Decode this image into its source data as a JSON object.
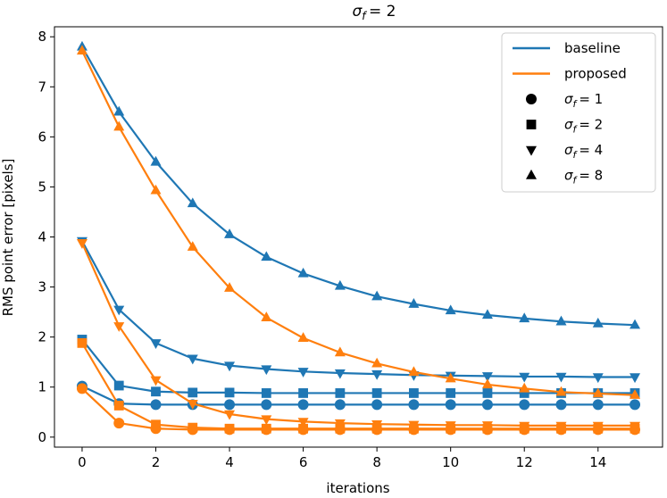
{
  "chart_data": {
    "type": "line",
    "title": "σ_f = 2",
    "xlabel": "iterations",
    "ylabel": "RMS point error [pixels]",
    "xlim": [
      -0.75,
      15.75
    ],
    "ylim": [
      -0.2,
      8.2
    ],
    "xticks": [
      0,
      2,
      4,
      6,
      8,
      10,
      12,
      14
    ],
    "yticks": [
      0,
      1,
      2,
      3,
      4,
      5,
      6,
      7,
      8
    ],
    "grid": false,
    "legend_position": "top-right",
    "colors": {
      "baseline": "#1f77b4",
      "proposed": "#ff7f0e"
    },
    "legend": {
      "methods": [
        {
          "key": "baseline",
          "label": "baseline"
        },
        {
          "key": "proposed",
          "label": "proposed"
        }
      ],
      "markers": [
        {
          "marker": "circle",
          "label": "σ_f = 1"
        },
        {
          "marker": "square",
          "label": "σ_f = 2"
        },
        {
          "marker": "triangle-down",
          "label": "σ_f = 4"
        },
        {
          "marker": "triangle-up",
          "label": "σ_f = 8"
        }
      ]
    },
    "x": [
      0,
      1,
      2,
      3,
      4,
      5,
      6,
      7,
      8,
      9,
      10,
      11,
      12,
      13,
      14,
      15
    ],
    "series": [
      {
        "method": "baseline",
        "sigma_f": 1,
        "marker": "circle",
        "values": [
          1.02,
          0.67,
          0.65,
          0.65,
          0.65,
          0.65,
          0.65,
          0.65,
          0.65,
          0.65,
          0.65,
          0.65,
          0.65,
          0.65,
          0.65,
          0.65
        ]
      },
      {
        "method": "baseline",
        "sigma_f": 2,
        "marker": "square",
        "values": [
          1.95,
          1.03,
          0.91,
          0.89,
          0.89,
          0.88,
          0.88,
          0.88,
          0.88,
          0.88,
          0.88,
          0.88,
          0.88,
          0.88,
          0.88,
          0.88
        ]
      },
      {
        "method": "baseline",
        "sigma_f": 4,
        "marker": "triangle-down",
        "values": [
          3.92,
          2.55,
          1.88,
          1.57,
          1.43,
          1.36,
          1.31,
          1.28,
          1.26,
          1.24,
          1.23,
          1.22,
          1.21,
          1.21,
          1.2,
          1.2
        ]
      },
      {
        "method": "baseline",
        "sigma_f": 8,
        "marker": "triangle-up",
        "values": [
          7.8,
          6.5,
          5.5,
          4.67,
          4.05,
          3.6,
          3.27,
          3.02,
          2.81,
          2.66,
          2.53,
          2.44,
          2.37,
          2.31,
          2.27,
          2.24
        ]
      },
      {
        "method": "proposed",
        "sigma_f": 1,
        "marker": "circle",
        "values": [
          0.97,
          0.28,
          0.17,
          0.15,
          0.15,
          0.15,
          0.15,
          0.15,
          0.15,
          0.15,
          0.15,
          0.15,
          0.15,
          0.15,
          0.15,
          0.15
        ]
      },
      {
        "method": "proposed",
        "sigma_f": 2,
        "marker": "square",
        "values": [
          1.88,
          0.63,
          0.25,
          0.19,
          0.17,
          0.17,
          0.17,
          0.17,
          0.17,
          0.17,
          0.17,
          0.17,
          0.17,
          0.17,
          0.17,
          0.17
        ]
      },
      {
        "method": "proposed",
        "sigma_f": 4,
        "marker": "triangle-down",
        "values": [
          3.88,
          2.22,
          1.14,
          0.67,
          0.46,
          0.36,
          0.31,
          0.28,
          0.26,
          0.25,
          0.24,
          0.24,
          0.23,
          0.23,
          0.23,
          0.23
        ]
      },
      {
        "method": "proposed",
        "sigma_f": 8,
        "marker": "triangle-up",
        "values": [
          7.72,
          6.2,
          4.93,
          3.8,
          2.98,
          2.39,
          1.98,
          1.69,
          1.47,
          1.3,
          1.17,
          1.05,
          0.97,
          0.9,
          0.87,
          0.84
        ]
      }
    ]
  }
}
